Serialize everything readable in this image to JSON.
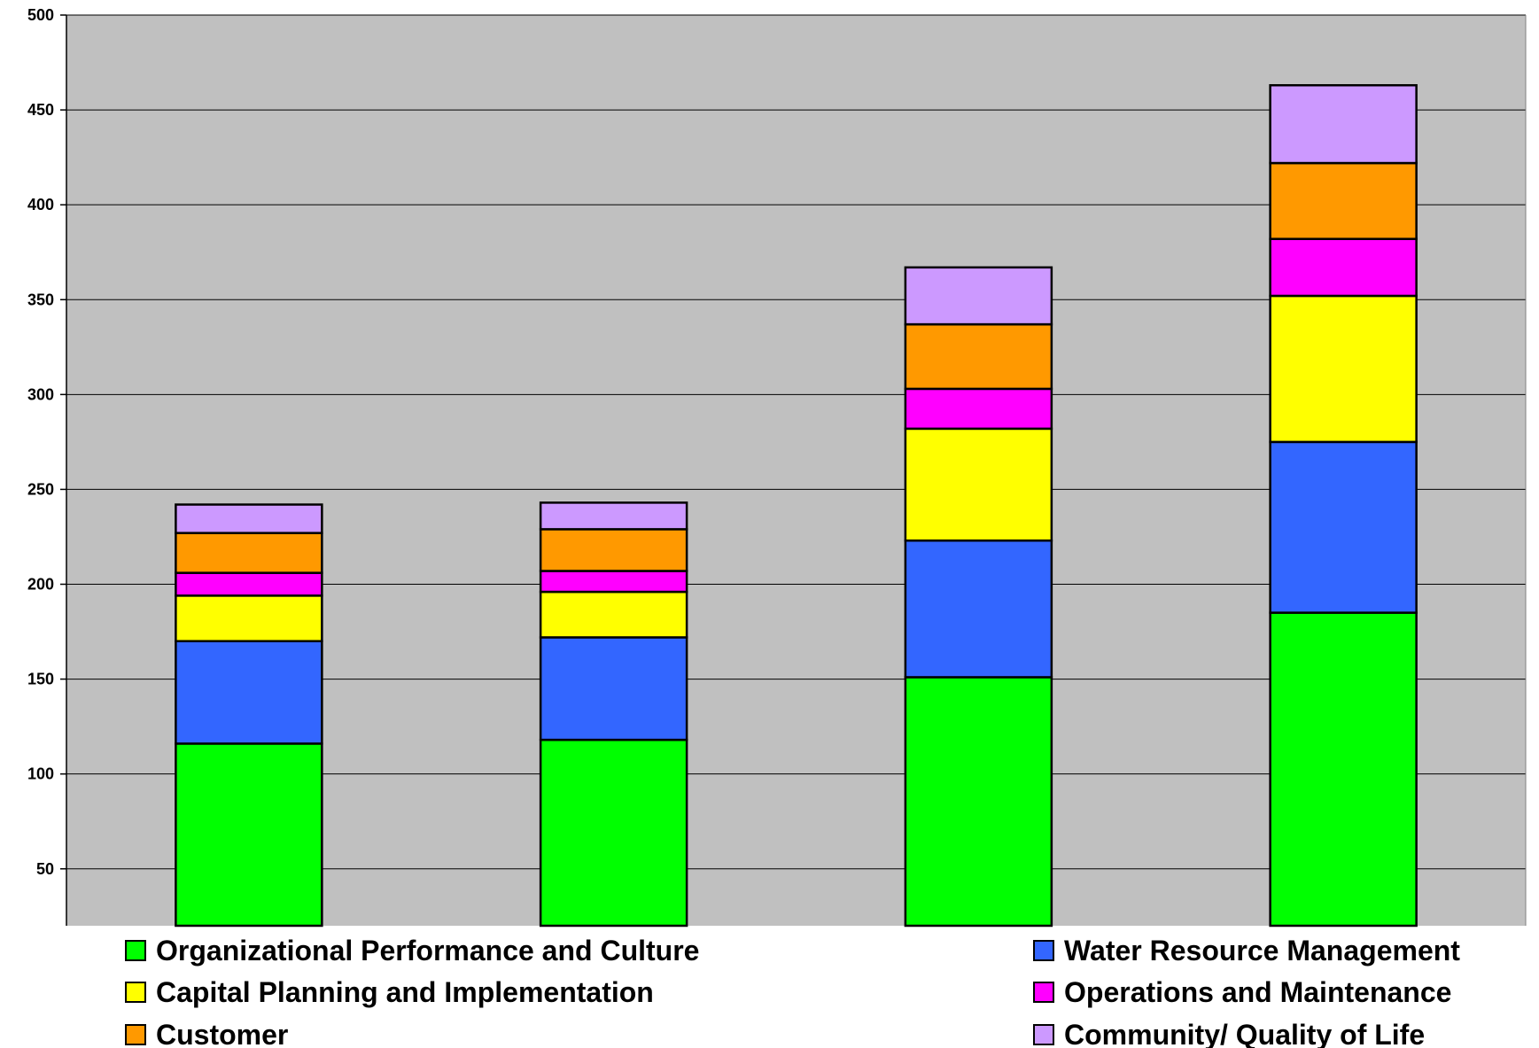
{
  "chart_data": {
    "type": "bar",
    "stacked": true,
    "title": "",
    "xlabel": "",
    "ylabel": "",
    "ylim": [
      20,
      500
    ],
    "yticks": [
      50,
      100,
      150,
      200,
      250,
      300,
      350,
      400,
      450,
      500
    ],
    "categories": [
      "",
      "",
      "",
      ""
    ],
    "grid": true,
    "legend_position": "bottom",
    "plot_background": "#c0c0c0",
    "series": [
      {
        "name": "Organizational Performance and Culture",
        "color": "#00ff00",
        "values": [
          116,
          118,
          151,
          185
        ]
      },
      {
        "name": "Water Resource Management",
        "color": "#3366ff",
        "values": [
          54,
          54,
          72,
          90
        ]
      },
      {
        "name": "Capital Planning and Implementation",
        "color": "#ffff00",
        "values": [
          24,
          24,
          59,
          77
        ]
      },
      {
        "name": "Operations and Maintenance",
        "color": "#ff00ff",
        "values": [
          12,
          11,
          21,
          30
        ]
      },
      {
        "name": "Customer",
        "color": "#ff9900",
        "values": [
          21,
          22,
          34,
          40
        ]
      },
      {
        "name": "Community/ Quality of Life",
        "color": "#cc99ff",
        "values": [
          15,
          14,
          30,
          41
        ]
      }
    ]
  }
}
